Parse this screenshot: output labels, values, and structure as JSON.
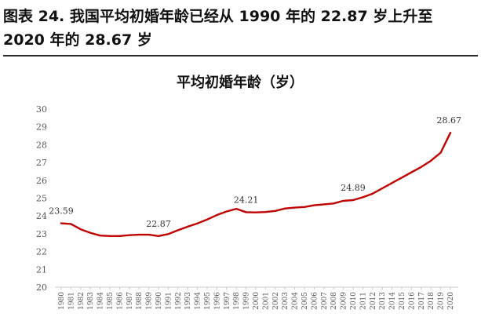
{
  "figure_title": "图表 24. 我国平均初婚年龄已经从 1990 年的 22.87 岁上升至 2020 年的 28.67 岁",
  "chart_data": {
    "type": "line",
    "title": "平均初婚年龄（岁）",
    "xlabel": "",
    "ylabel": "",
    "ylim": [
      20,
      30
    ],
    "yticks": [
      20,
      21,
      22,
      23,
      24,
      25,
      26,
      27,
      28,
      29,
      30
    ],
    "grid": false,
    "series_color": "#c00000",
    "x": [
      1980,
      1981,
      1982,
      1983,
      1984,
      1985,
      1986,
      1987,
      1988,
      1989,
      1990,
      1991,
      1992,
      1993,
      1994,
      1995,
      1996,
      1997,
      1998,
      1999,
      2000,
      2001,
      2002,
      2003,
      2004,
      2005,
      2006,
      2007,
      2008,
      2009,
      2010,
      2011,
      2012,
      2013,
      2014,
      2015,
      2016,
      2017,
      2018,
      2019,
      2020
    ],
    "series": [
      {
        "name": "平均初婚年龄",
        "values": [
          23.59,
          23.55,
          23.25,
          23.05,
          22.9,
          22.87,
          22.87,
          22.92,
          22.95,
          22.95,
          22.87,
          22.98,
          23.2,
          23.4,
          23.58,
          23.8,
          24.05,
          24.25,
          24.4,
          24.21,
          24.2,
          24.22,
          24.28,
          24.42,
          24.47,
          24.5,
          24.6,
          24.65,
          24.7,
          24.85,
          24.89,
          25.05,
          25.25,
          25.55,
          25.85,
          26.15,
          26.45,
          26.75,
          27.1,
          27.55,
          28.67
        ]
      }
    ],
    "data_labels": [
      {
        "x": 1980,
        "text": "23.59"
      },
      {
        "x": 1990,
        "text": "22.87"
      },
      {
        "x": 1999,
        "text": "24.21"
      },
      {
        "x": 2010,
        "text": "24.89"
      },
      {
        "x": 2020,
        "text": "28.67"
      }
    ]
  }
}
